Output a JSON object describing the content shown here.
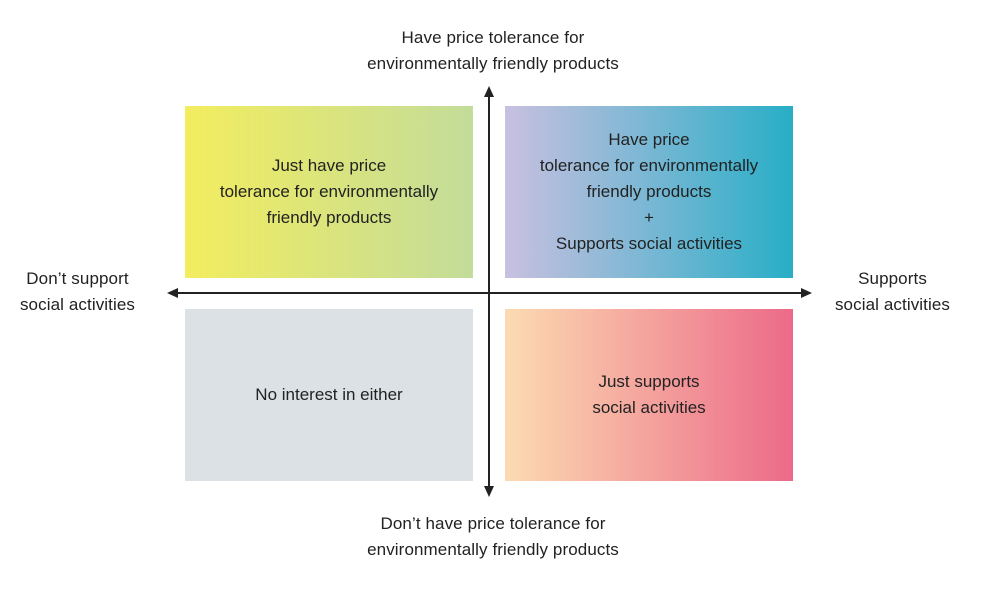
{
  "axes": {
    "top": [
      "Have price tolerance for",
      "environmentally friendly products"
    ],
    "bottom": [
      "Don’t have price tolerance for",
      "environmentally friendly products"
    ],
    "left": [
      "Don’t support",
      "social activities"
    ],
    "right": [
      "Supports",
      "social activities"
    ]
  },
  "quadrants": {
    "top_left": [
      "Just have price",
      "tolerance for environmentally",
      "friendly products"
    ],
    "top_right": [
      "Have price",
      "tolerance for environmentally",
      "friendly products",
      "+",
      "Supports social activities"
    ],
    "bottom_left": [
      "No interest in either"
    ],
    "bottom_right": [
      "Just supports",
      "social activities"
    ]
  },
  "colors": {
    "top_left_gradient": [
      "#f3ed5f",
      "#c2dc9a"
    ],
    "top_right_gradient": [
      "#c9c0e0",
      "#28aec7"
    ],
    "bottom_left": "#dbe1e4",
    "bottom_right_gradient": [
      "#fcdbb1",
      "#ec6a89"
    ],
    "axis": "#222222"
  }
}
